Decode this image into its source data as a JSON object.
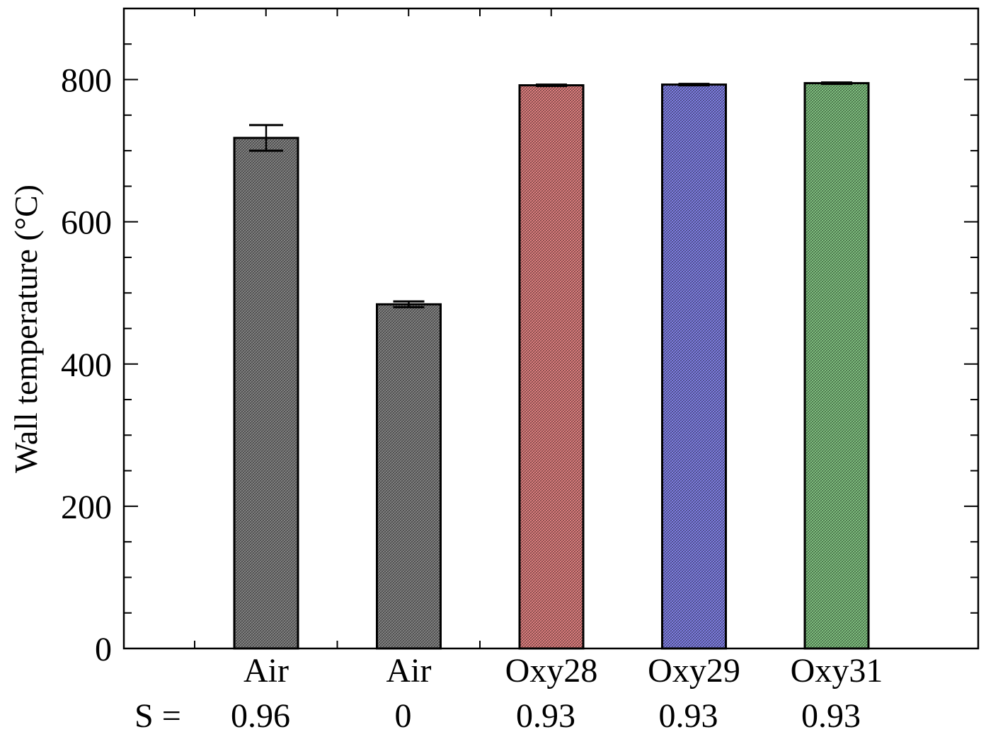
{
  "chart_data": {
    "type": "bar",
    "title": "",
    "xlabel": "",
    "ylabel": "Wall temperature (°C)",
    "ylim": [
      0,
      900
    ],
    "yticks": [
      0,
      200,
      400,
      600,
      800
    ],
    "categories": [
      "Air",
      "Air",
      "Oxy28",
      "Oxy29",
      "Oxy31"
    ],
    "s_prefix": "S =",
    "s_values": [
      "0.96",
      "0",
      "0.93",
      "0.93",
      "0.93"
    ],
    "values": [
      718,
      484,
      792,
      793,
      795
    ],
    "error": [
      18,
      4,
      1,
      1,
      1
    ],
    "colors": [
      "#8c8c8c",
      "#8c8c8c",
      "#f08a8a",
      "#8a8af5",
      "#8ad08a"
    ]
  }
}
